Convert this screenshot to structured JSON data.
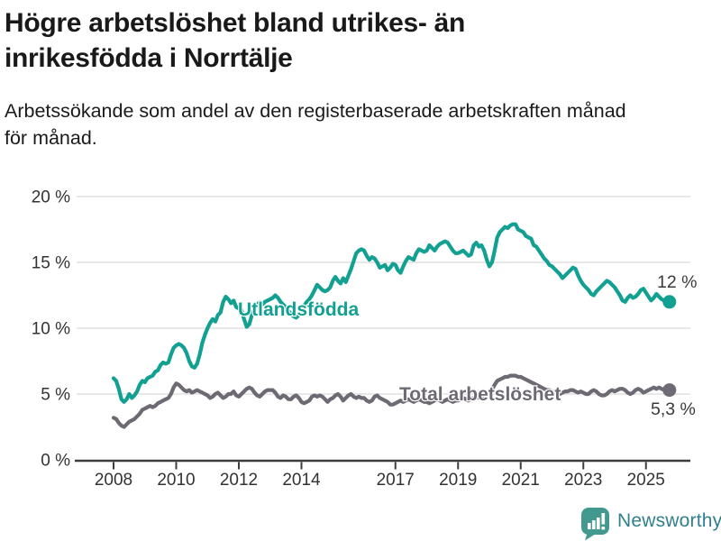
{
  "header": {
    "title_lines": [
      "Högre arbetslöshet bland utrikes- än",
      "inrikesfödda i Norrtälje"
    ],
    "subtitle_lines": [
      "Arbetssökande som andel av den registerbaserade arbetskraften månad",
      "för månad."
    ]
  },
  "chart_data": {
    "type": "line",
    "title": "Högre arbetslöshet bland utrikes- än inrikesfödda i Norrtälje",
    "subtitle": "Arbetssökande som andel av den registerbaserade arbetskraften månad för månad.",
    "x_axis": {
      "unit": "year (monthly points)",
      "start_year": 2008,
      "points_per_year": 12,
      "tick_years": [
        2008,
        2010,
        2012,
        2014,
        2017,
        2019,
        2021,
        2023,
        2025
      ],
      "tick_labels": [
        "2008",
        "2010",
        "2012",
        "2014",
        "2017",
        "2019",
        "2021",
        "2023",
        "2025"
      ]
    },
    "y_axis": {
      "unit": "%",
      "range": [
        0,
        20
      ],
      "ticks": [
        0,
        5,
        10,
        15,
        20
      ],
      "tick_labels": [
        "0 %",
        "5 %",
        "10 %",
        "15 %",
        "20 %"
      ],
      "grid": true
    },
    "legend_position": "inline-labels",
    "series": [
      {
        "id": "utlandsfodda",
        "name": "Utlandsfödda",
        "color": "#12a092",
        "end_label": "12 %",
        "end_value": 12.0,
        "values": [
          6.2,
          6.0,
          5.4,
          4.6,
          4.4,
          4.6,
          5.0,
          4.7,
          4.9,
          5.2,
          5.7,
          6.0,
          5.9,
          6.2,
          6.3,
          6.4,
          6.7,
          6.8,
          7.2,
          7.4,
          7.3,
          7.4,
          8.0,
          8.5,
          8.7,
          8.8,
          8.7,
          8.5,
          8.1,
          7.5,
          7.1,
          7.0,
          7.3,
          8.0,
          8.9,
          9.5,
          10.0,
          10.4,
          10.7,
          10.5,
          11.0,
          11.2,
          12.0,
          12.4,
          12.2,
          11.9,
          12.1,
          11.6,
          11.5,
          11.4,
          10.7,
          10.1,
          10.3,
          11.0,
          11.6,
          11.8,
          12.0,
          11.8,
          12.0,
          12.1,
          12.2,
          12.3,
          12.5,
          12.3,
          12.0,
          11.8,
          11.6,
          11.3,
          11.1,
          10.9,
          10.8,
          11.0,
          11.4,
          11.7,
          12.0,
          12.2,
          12.5,
          12.9,
          13.3,
          13.1,
          12.9,
          12.8,
          12.9,
          13.1,
          13.6,
          13.9,
          13.6,
          13.4,
          13.8,
          13.5,
          14.0,
          14.5,
          15.1,
          15.7,
          15.9,
          16.0,
          15.9,
          15.5,
          15.2,
          15.4,
          15.3,
          15.0,
          14.6,
          14.7,
          14.8,
          14.4,
          14.6,
          14.9,
          14.8,
          14.4,
          14.2,
          14.7,
          15.1,
          15.4,
          15.3,
          15.2,
          15.7,
          16.0,
          15.9,
          15.8,
          15.9,
          16.3,
          16.1,
          15.9,
          16.2,
          16.4,
          16.5,
          16.6,
          16.5,
          16.2,
          15.9,
          15.7,
          15.7,
          15.8,
          15.9,
          15.7,
          15.5,
          15.6,
          16.3,
          16.5,
          16.2,
          16.3,
          15.9,
          15.2,
          14.7,
          15.0,
          15.9,
          16.9,
          17.3,
          17.5,
          17.7,
          17.6,
          17.8,
          17.9,
          17.9,
          17.5,
          17.4,
          17.3,
          17.0,
          16.9,
          16.8,
          16.3,
          16.2,
          15.9,
          15.6,
          15.3,
          15.1,
          14.8,
          14.7,
          14.5,
          14.3,
          14.1,
          13.8,
          14.0,
          14.2,
          14.4,
          14.6,
          14.5,
          14.0,
          13.6,
          13.3,
          13.1,
          12.9,
          12.6,
          12.5,
          12.8,
          13.0,
          13.2,
          13.4,
          13.6,
          13.5,
          13.3,
          13.1,
          12.8,
          12.5,
          12.1,
          12.0,
          12.3,
          12.5,
          12.3,
          12.4,
          12.6,
          12.9,
          13.0,
          12.7,
          12.4,
          12.1,
          12.3,
          12.6,
          12.4,
          12.2,
          12.1,
          12.0,
          12.0
        ]
      },
      {
        "id": "total",
        "name": "Total arbetslöshet",
        "color": "#6e6a73",
        "end_label": "5,3 %",
        "end_value": 5.3,
        "values": [
          3.2,
          3.1,
          2.8,
          2.6,
          2.5,
          2.7,
          2.9,
          3.0,
          3.1,
          3.3,
          3.5,
          3.8,
          3.9,
          4.0,
          4.1,
          4.0,
          4.1,
          4.3,
          4.4,
          4.5,
          4.6,
          4.7,
          5.0,
          5.5,
          5.8,
          5.7,
          5.5,
          5.3,
          5.2,
          5.3,
          5.1,
          5.2,
          5.3,
          5.2,
          5.1,
          5.0,
          4.9,
          4.7,
          4.8,
          5.0,
          5.1,
          4.9,
          4.7,
          4.8,
          5.0,
          5.0,
          5.2,
          4.9,
          4.8,
          5.0,
          5.2,
          5.4,
          5.5,
          5.4,
          5.1,
          4.9,
          4.8,
          5.0,
          5.2,
          5.3,
          5.3,
          5.3,
          5.1,
          4.8,
          4.7,
          4.9,
          4.8,
          4.6,
          4.6,
          4.8,
          4.9,
          4.7,
          4.4,
          4.3,
          4.4,
          4.5,
          4.8,
          4.9,
          4.8,
          4.9,
          4.8,
          4.6,
          4.4,
          4.6,
          4.7,
          4.9,
          5.0,
          4.8,
          4.5,
          4.7,
          4.9,
          5.0,
          4.8,
          4.7,
          4.8,
          4.7,
          4.7,
          4.5,
          4.4,
          4.5,
          4.8,
          4.9,
          4.7,
          4.6,
          4.5,
          4.4,
          4.2,
          4.2,
          4.3,
          4.4,
          4.5,
          4.4,
          4.5,
          4.6,
          4.5,
          4.4,
          4.5,
          4.6,
          4.5,
          4.4,
          4.4,
          4.3,
          4.4,
          4.5,
          4.6,
          4.5,
          4.4,
          4.5,
          4.6,
          4.5,
          4.4,
          4.5,
          4.5,
          4.6,
          4.7,
          4.6,
          4.5,
          4.6,
          4.7,
          4.8,
          4.7,
          4.8,
          4.9,
          4.9,
          5.0,
          5.3,
          5.7,
          6.0,
          6.1,
          6.2,
          6.3,
          6.3,
          6.4,
          6.4,
          6.4,
          6.3,
          6.3,
          6.2,
          6.1,
          6.0,
          5.9,
          5.8,
          5.7,
          5.6,
          5.5,
          5.4,
          5.3,
          5.3,
          5.2,
          5.1,
          5.1,
          5.0,
          5.1,
          5.2,
          5.2,
          5.3,
          5.3,
          5.2,
          5.1,
          5.2,
          5.1,
          5.0,
          5.0,
          5.2,
          5.3,
          5.2,
          5.0,
          4.9,
          4.9,
          5.0,
          5.2,
          5.3,
          5.2,
          5.3,
          5.4,
          5.4,
          5.3,
          5.1,
          5.0,
          5.1,
          5.3,
          5.4,
          5.3,
          5.1,
          5.2,
          5.3,
          5.4,
          5.5,
          5.4,
          5.5,
          5.4,
          5.3,
          5.3,
          5.3
        ]
      }
    ]
  },
  "colors": {
    "grid": "#d9d9d9",
    "axis": "#3d3d3d",
    "axis_text": "#333333",
    "end_label_text": "#3a3a3a"
  },
  "footer": {
    "brand": "Newsworthy",
    "brand_color": "#327f8e",
    "icon_color": "#43998f"
  }
}
